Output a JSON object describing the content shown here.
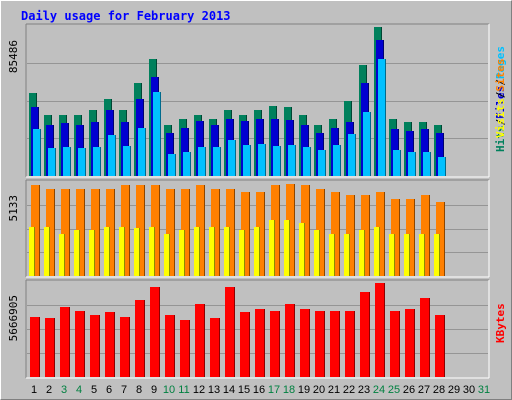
{
  "title": "Daily usage for February 2013",
  "colors": {
    "hits": "#00805c",
    "files": "#0000d0",
    "pages": "#00c0ff",
    "visits": "#ffff00",
    "sites": "#ff8000",
    "kbytes": "#ff0000",
    "weekday_label": "#000000",
    "weekend_label": "#008040",
    "panel_bg": "#c0c0c0"
  },
  "chart_data": [
    {
      "type": "bar",
      "panel": "hits-files-pages",
      "max_label": "85486",
      "side_label": [
        {
          "text": "Hits",
          "color": "#00805c"
        },
        {
          "text": "/",
          "color": "#000000"
        },
        {
          "text": "Files",
          "color": "#0000d0"
        },
        {
          "text": "/",
          "color": "#000000"
        },
        {
          "text": "Pages",
          "color": "#00c0ff"
        }
      ],
      "ylim": [
        0,
        85486
      ],
      "categories": [
        "1",
        "2",
        "3",
        "4",
        "5",
        "6",
        "7",
        "8",
        "9",
        "10",
        "11",
        "12",
        "13",
        "14",
        "15",
        "16",
        "17",
        "18",
        "19",
        "20",
        "21",
        "22",
        "23",
        "24",
        "25",
        "26",
        "27",
        "28",
        "29",
        "30",
        "31"
      ],
      "series": [
        {
          "name": "Hits",
          "values": [
            46900,
            34700,
            34700,
            34700,
            37300,
            43400,
            37300,
            52500,
            66100,
            28900,
            32300,
            34700,
            32300,
            37300,
            34700,
            37300,
            39700,
            38800,
            34700,
            28900,
            32300,
            42300,
            62600,
            84600,
            32300,
            30500,
            30500,
            28900,
            0,
            0,
            0
          ]
        },
        {
          "name": "Files",
          "values": [
            38800,
            28900,
            29900,
            28900,
            30500,
            37300,
            30500,
            43400,
            56100,
            24500,
            27300,
            31000,
            28900,
            32300,
            31000,
            32300,
            32300,
            31500,
            28900,
            24100,
            27300,
            30500,
            52500,
            77100,
            26400,
            25400,
            26400,
            24500,
            0,
            0,
            0
          ]
        },
        {
          "name": "Pages",
          "values": [
            26500,
            15700,
            16200,
            15700,
            16200,
            23400,
            17000,
            27300,
            47600,
            12500,
            13600,
            16200,
            16200,
            20400,
            17800,
            18200,
            17000,
            17800,
            16200,
            14800,
            17800,
            23800,
            36000,
            66100,
            14800,
            13600,
            13600,
            10500,
            0,
            0,
            0
          ]
        }
      ]
    },
    {
      "type": "bar",
      "panel": "visits-sites",
      "max_label": "5133",
      "side_label": [
        {
          "text": "Visits",
          "color": "#ffff00"
        },
        {
          "text": "/",
          "color": "#000000"
        },
        {
          "text": "Sites",
          "color": "#ff8000"
        }
      ],
      "ylim": [
        0,
        5133
      ],
      "categories": [
        "1",
        "2",
        "3",
        "4",
        "5",
        "6",
        "7",
        "8",
        "9",
        "10",
        "11",
        "12",
        "13",
        "14",
        "15",
        "16",
        "17",
        "18",
        "19",
        "20",
        "21",
        "22",
        "23",
        "24",
        "25",
        "26",
        "27",
        "28",
        "29",
        "30",
        "31"
      ],
      "series": [
        {
          "name": "Visits",
          "values": [
            2640,
            2640,
            2270,
            2460,
            2460,
            2640,
            2640,
            2590,
            2640,
            2270,
            2460,
            2640,
            2640,
            2640,
            2460,
            2640,
            3000,
            3000,
            2860,
            2460,
            2270,
            2270,
            2460,
            2640,
            2270,
            2270,
            2270,
            2270,
            0,
            0,
            0
          ]
        },
        {
          "name": "Sites",
          "values": [
            4900,
            4720,
            4720,
            4720,
            4720,
            4720,
            4900,
            4900,
            4900,
            4720,
            4720,
            4900,
            4720,
            4720,
            4540,
            4540,
            4900,
            4990,
            4900,
            4720,
            4540,
            4360,
            4360,
            4540,
            4180,
            4180,
            4360,
            4000,
            0,
            0,
            0
          ]
        }
      ]
    },
    {
      "type": "bar",
      "panel": "kbytes",
      "max_label": "5666905",
      "side_label": [
        {
          "text": "KBytes",
          "color": "#ff0000"
        }
      ],
      "ylim": [
        0,
        5666905
      ],
      "categories": [
        "1",
        "2",
        "3",
        "4",
        "5",
        "6",
        "7",
        "8",
        "9",
        "10",
        "11",
        "12",
        "13",
        "14",
        "15",
        "16",
        "17",
        "18",
        "19",
        "20",
        "21",
        "22",
        "23",
        "24",
        "25",
        "26",
        "27",
        "28",
        "29",
        "30",
        "31"
      ],
      "series": [
        {
          "name": "KBytes",
          "values": [
            3570000,
            3480000,
            4140000,
            3900000,
            3670000,
            3810000,
            3570000,
            4560000,
            5290000,
            3670000,
            3370000,
            4280000,
            3480000,
            5290000,
            3810000,
            4000000,
            3900000,
            4280000,
            4000000,
            3900000,
            3900000,
            3900000,
            5010000,
            5570000,
            3900000,
            4000000,
            4650000,
            3670000,
            0,
            0,
            0
          ]
        }
      ]
    }
  ],
  "day_labels": {
    "days": [
      "1",
      "2",
      "3",
      "4",
      "5",
      "6",
      "7",
      "8",
      "9",
      "10",
      "11",
      "12",
      "13",
      "14",
      "15",
      "16",
      "17",
      "18",
      "19",
      "20",
      "21",
      "22",
      "23",
      "24",
      "25",
      "26",
      "27",
      "28",
      "29",
      "30",
      "31"
    ],
    "weekend": [
      3,
      4,
      10,
      11,
      17,
      18,
      24,
      25,
      31
    ]
  }
}
